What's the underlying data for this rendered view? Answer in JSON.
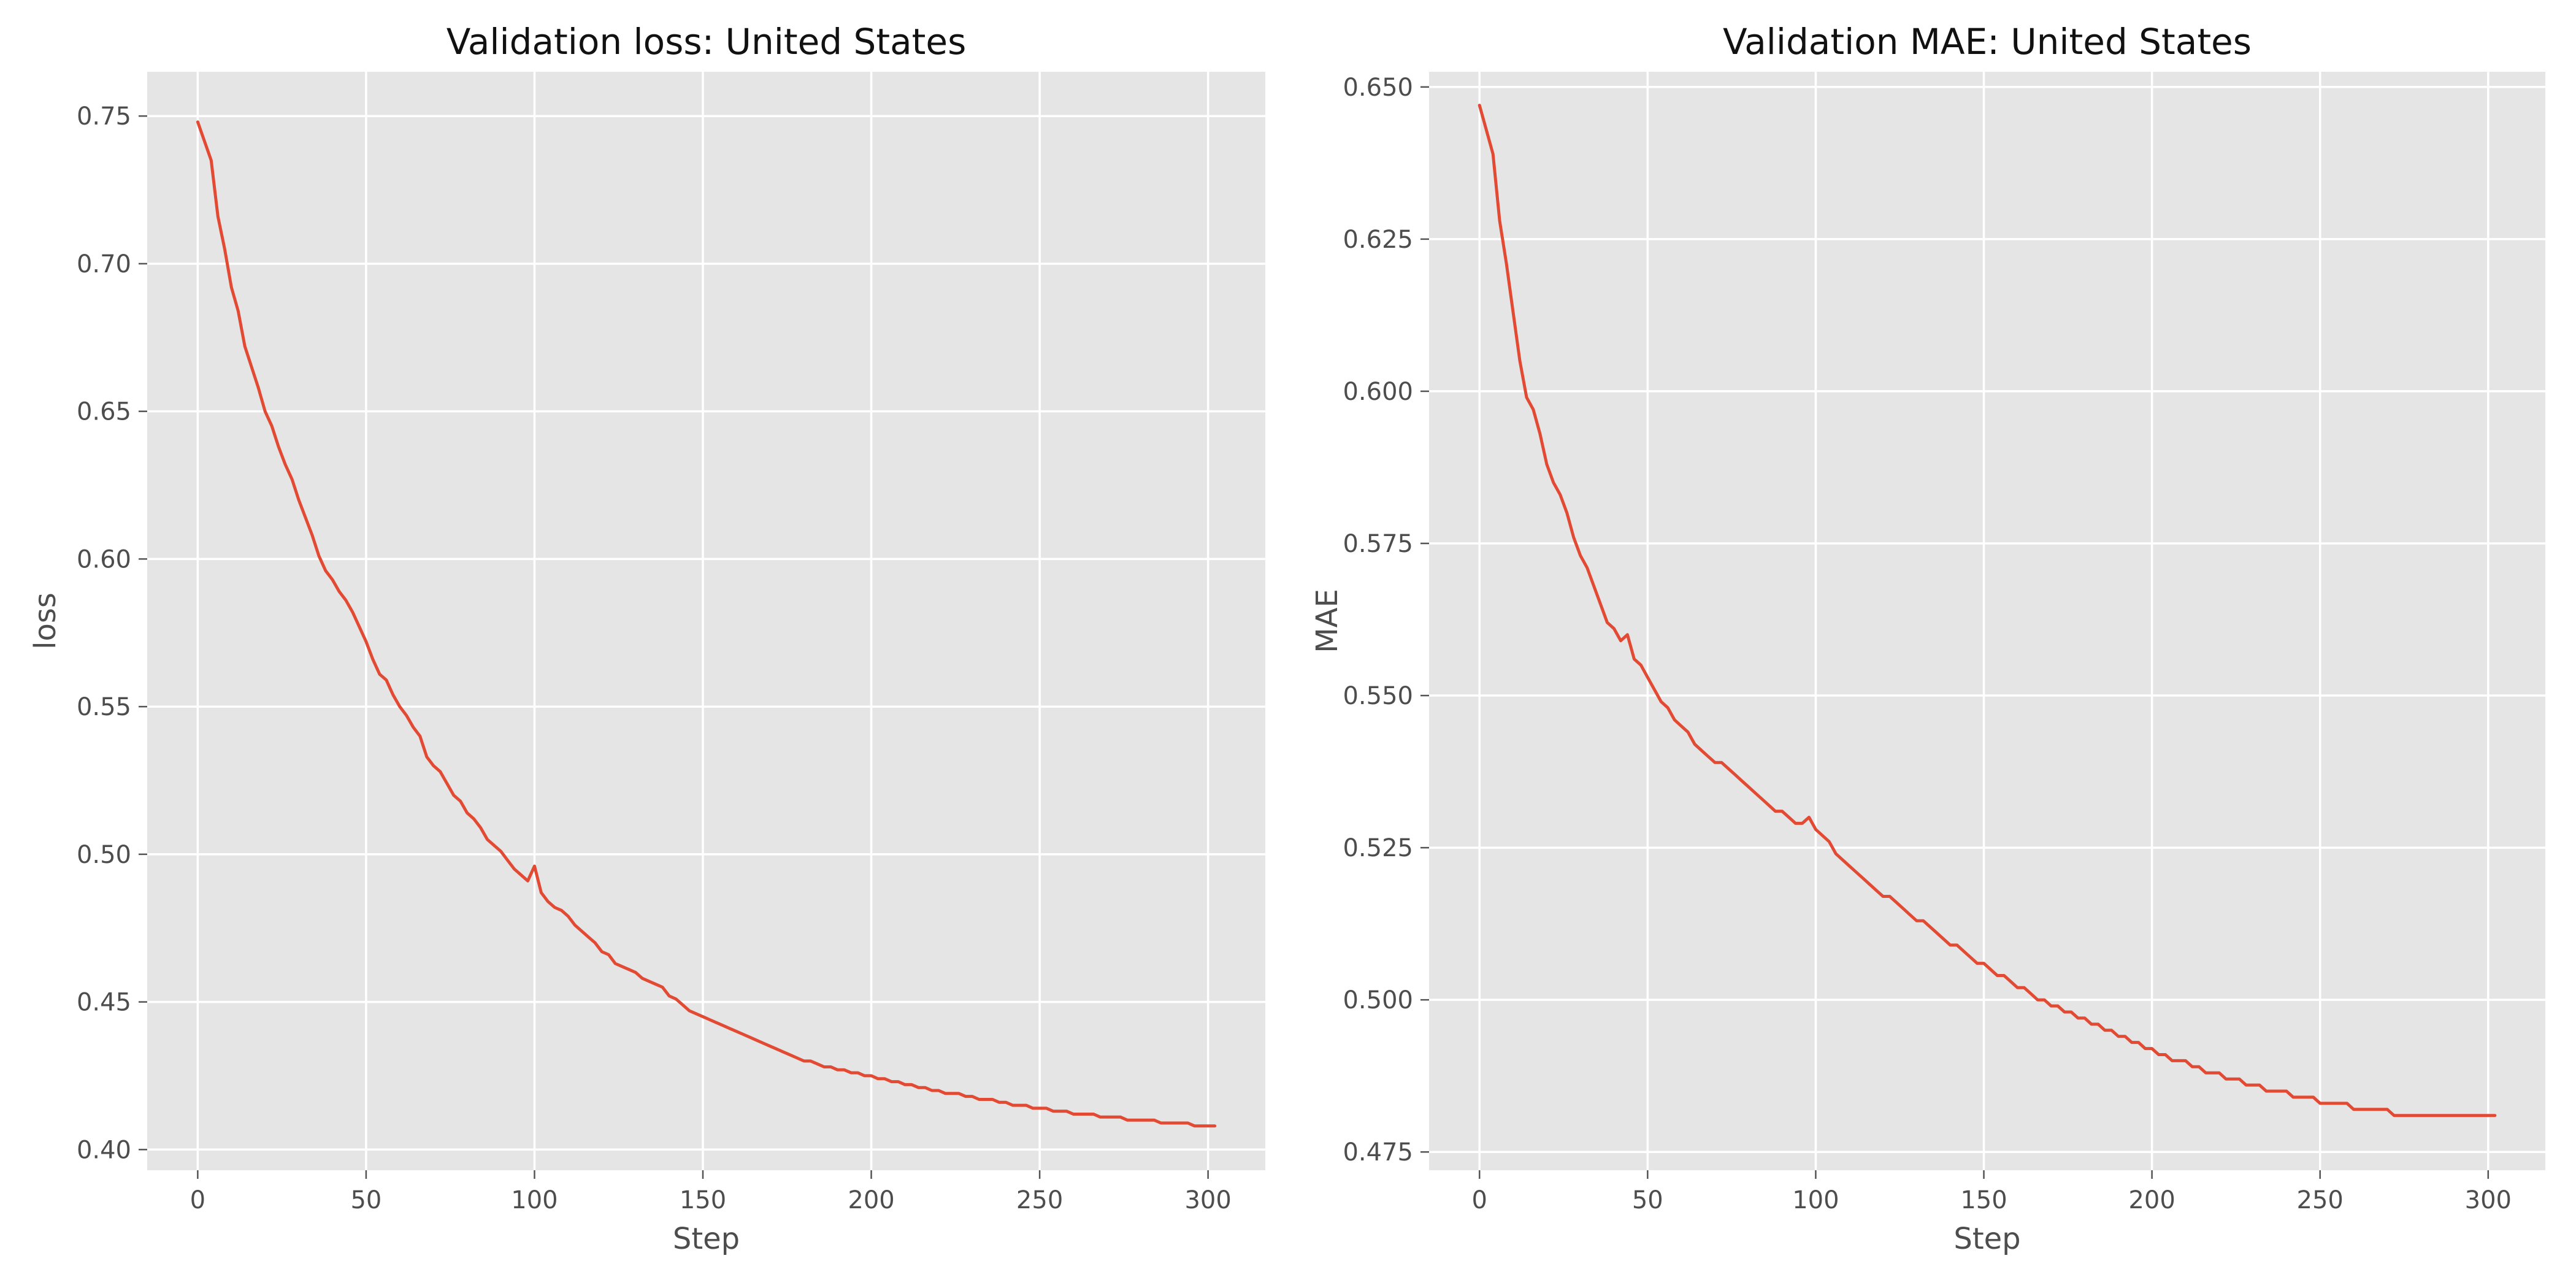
{
  "chart_data": [
    {
      "type": "line",
      "title": "Validation loss: United States",
      "xlabel": "Step",
      "ylabel": "loss",
      "xlim": [
        -15,
        317
      ],
      "ylim": [
        0.393,
        0.765
      ],
      "xticks": [
        0,
        50,
        100,
        150,
        200,
        250,
        300
      ],
      "xtick_labels": [
        "0",
        "50",
        "100",
        "150",
        "200",
        "250",
        "300"
      ],
      "yticks": [
        0.4,
        0.45,
        0.5,
        0.55,
        0.6,
        0.65,
        0.7,
        0.75
      ],
      "ytick_labels": [
        "0.40",
        "0.45",
        "0.50",
        "0.55",
        "0.60",
        "0.65",
        "0.70",
        "0.75"
      ],
      "grid": true,
      "color": "#e24a33",
      "series": [
        {
          "x": [
            0,
            4,
            6,
            8,
            10,
            12,
            14,
            16,
            18,
            20,
            22,
            24,
            26,
            28,
            30,
            32,
            34,
            36,
            38,
            40,
            42,
            44,
            46,
            48,
            50,
            52,
            54,
            56,
            58,
            60,
            62,
            64,
            66,
            68,
            70,
            72,
            74,
            76,
            78,
            80,
            82,
            84,
            86,
            88,
            90,
            92,
            94,
            96,
            98,
            100,
            102,
            104,
            106,
            108,
            110,
            112,
            114,
            116,
            118,
            120,
            122,
            124,
            126,
            128,
            130,
            132,
            134,
            136,
            138,
            140,
            142,
            144,
            146,
            148,
            150,
            152,
            154,
            156,
            158,
            160,
            162,
            164,
            166,
            168,
            170,
            172,
            174,
            176,
            178,
            180,
            182,
            184,
            186,
            188,
            190,
            192,
            194,
            196,
            198,
            200,
            202,
            204,
            206,
            208,
            210,
            212,
            214,
            216,
            218,
            220,
            222,
            224,
            226,
            228,
            230,
            232,
            234,
            236,
            238,
            240,
            242,
            244,
            246,
            248,
            250,
            252,
            254,
            256,
            258,
            260,
            262,
            264,
            266,
            268,
            270,
            272,
            274,
            276,
            278,
            280,
            282,
            284,
            286,
            288,
            290,
            292,
            294,
            296,
            298,
            300,
            302
          ],
          "y": [
            0.748,
            0.735,
            0.716,
            0.705,
            0.692,
            0.684,
            0.672,
            0.665,
            0.658,
            0.65,
            0.645,
            0.638,
            0.632,
            0.627,
            0.62,
            0.614,
            0.608,
            0.601,
            0.596,
            0.593,
            0.589,
            0.586,
            0.582,
            0.577,
            0.572,
            0.566,
            0.561,
            0.559,
            0.554,
            0.55,
            0.547,
            0.543,
            0.54,
            0.533,
            0.53,
            0.528,
            0.524,
            0.52,
            0.518,
            0.514,
            0.512,
            0.509,
            0.505,
            0.503,
            0.501,
            0.498,
            0.495,
            0.493,
            0.491,
            0.496,
            0.487,
            0.484,
            0.482,
            0.481,
            0.479,
            0.476,
            0.474,
            0.472,
            0.47,
            0.467,
            0.466,
            0.463,
            0.462,
            0.461,
            0.46,
            0.458,
            0.457,
            0.456,
            0.455,
            0.452,
            0.451,
            0.449,
            0.447,
            0.446,
            0.445,
            0.444,
            0.443,
            0.442,
            0.441,
            0.44,
            0.439,
            0.438,
            0.437,
            0.436,
            0.435,
            0.434,
            0.433,
            0.432,
            0.431,
            0.43,
            0.43,
            0.429,
            0.428,
            0.428,
            0.427,
            0.427,
            0.426,
            0.426,
            0.425,
            0.425,
            0.424,
            0.424,
            0.423,
            0.423,
            0.422,
            0.422,
            0.421,
            0.421,
            0.42,
            0.42,
            0.419,
            0.419,
            0.419,
            0.418,
            0.418,
            0.417,
            0.417,
            0.417,
            0.416,
            0.416,
            0.415,
            0.415,
            0.415,
            0.414,
            0.414,
            0.414,
            0.413,
            0.413,
            0.413,
            0.412,
            0.412,
            0.412,
            0.412,
            0.411,
            0.411,
            0.411,
            0.411,
            0.41,
            0.41,
            0.41,
            0.41,
            0.41,
            0.409,
            0.409,
            0.409,
            0.409,
            0.409,
            0.408,
            0.408,
            0.408,
            0.408
          ]
        }
      ]
    },
    {
      "type": "line",
      "title": "Validation MAE: United States",
      "xlabel": "Step",
      "ylabel": "MAE",
      "xlim": [
        -15,
        317
      ],
      "ylim": [
        0.472,
        0.6525
      ],
      "xticks": [
        0,
        50,
        100,
        150,
        200,
        250,
        300
      ],
      "xtick_labels": [
        "0",
        "50",
        "100",
        "150",
        "200",
        "250",
        "300"
      ],
      "yticks": [
        0.475,
        0.5,
        0.525,
        0.55,
        0.575,
        0.6,
        0.625,
        0.65
      ],
      "ytick_labels": [
        "0.475",
        "0.500",
        "0.525",
        "0.550",
        "0.575",
        "0.600",
        "0.625",
        "0.650"
      ],
      "grid": true,
      "color": "#e24a33",
      "series": [
        {
          "x": [
            0,
            4,
            6,
            8,
            10,
            12,
            14,
            16,
            18,
            20,
            22,
            24,
            26,
            28,
            30,
            32,
            34,
            36,
            38,
            40,
            42,
            44,
            46,
            48,
            50,
            52,
            54,
            56,
            58,
            60,
            62,
            64,
            66,
            68,
            70,
            72,
            74,
            76,
            78,
            80,
            82,
            84,
            86,
            88,
            90,
            92,
            94,
            96,
            98,
            100,
            102,
            104,
            106,
            108,
            110,
            112,
            114,
            116,
            118,
            120,
            122,
            124,
            126,
            128,
            130,
            132,
            134,
            136,
            138,
            140,
            142,
            144,
            146,
            148,
            150,
            152,
            154,
            156,
            158,
            160,
            162,
            164,
            166,
            168,
            170,
            172,
            174,
            176,
            178,
            180,
            182,
            184,
            186,
            188,
            190,
            192,
            194,
            196,
            198,
            200,
            202,
            204,
            206,
            208,
            210,
            212,
            214,
            216,
            218,
            220,
            222,
            224,
            226,
            228,
            230,
            232,
            234,
            236,
            238,
            240,
            242,
            244,
            246,
            248,
            250,
            252,
            254,
            256,
            258,
            260,
            262,
            264,
            266,
            268,
            270,
            272,
            274,
            276,
            278,
            280,
            282,
            284,
            286,
            288,
            290,
            292,
            294,
            296,
            298,
            300,
            302
          ],
          "y": [
            0.647,
            0.639,
            0.628,
            0.621,
            0.613,
            0.605,
            0.599,
            0.597,
            0.593,
            0.588,
            0.585,
            0.583,
            0.58,
            0.576,
            0.573,
            0.571,
            0.568,
            0.565,
            0.562,
            0.561,
            0.559,
            0.56,
            0.556,
            0.555,
            0.553,
            0.551,
            0.549,
            0.548,
            0.546,
            0.545,
            0.544,
            0.542,
            0.541,
            0.54,
            0.539,
            0.539,
            0.538,
            0.537,
            0.536,
            0.535,
            0.534,
            0.533,
            0.532,
            0.531,
            0.531,
            0.53,
            0.529,
            0.529,
            0.53,
            0.528,
            0.527,
            0.526,
            0.524,
            0.523,
            0.522,
            0.521,
            0.52,
            0.519,
            0.518,
            0.517,
            0.517,
            0.516,
            0.515,
            0.514,
            0.513,
            0.513,
            0.512,
            0.511,
            0.51,
            0.509,
            0.509,
            0.508,
            0.507,
            0.506,
            0.506,
            0.505,
            0.504,
            0.504,
            0.503,
            0.502,
            0.502,
            0.501,
            0.5,
            0.5,
            0.499,
            0.499,
            0.498,
            0.498,
            0.497,
            0.497,
            0.496,
            0.496,
            0.495,
            0.495,
            0.494,
            0.494,
            0.493,
            0.493,
            0.492,
            0.492,
            0.491,
            0.491,
            0.49,
            0.49,
            0.49,
            0.489,
            0.489,
            0.488,
            0.488,
            0.488,
            0.487,
            0.487,
            0.487,
            0.486,
            0.486,
            0.486,
            0.485,
            0.485,
            0.485,
            0.485,
            0.484,
            0.484,
            0.484,
            0.484,
            0.483,
            0.483,
            0.483,
            0.483,
            0.483,
            0.482,
            0.482,
            0.482,
            0.482,
            0.482,
            0.482,
            0.481,
            0.481,
            0.481,
            0.481,
            0.481,
            0.481,
            0.481,
            0.481,
            0.481,
            0.481,
            0.481,
            0.481,
            0.481,
            0.481,
            0.481,
            0.481
          ]
        }
      ]
    }
  ]
}
